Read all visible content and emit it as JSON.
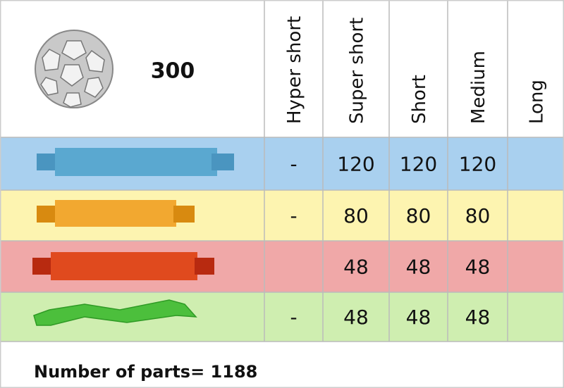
{
  "header": {
    "count": "300",
    "columns": [
      "Hyper short",
      "Super short",
      "Short",
      "Medium",
      "Long"
    ]
  },
  "table": {
    "rows": [
      [
        "-",
        120,
        120,
        120,
        null
      ],
      [
        "-",
        80,
        80,
        80,
        null
      ],
      [
        null,
        48,
        48,
        48,
        null
      ],
      [
        "-",
        48,
        48,
        48,
        null
      ]
    ]
  },
  "footer": {
    "text": "Number of parts= 1188"
  }
}
